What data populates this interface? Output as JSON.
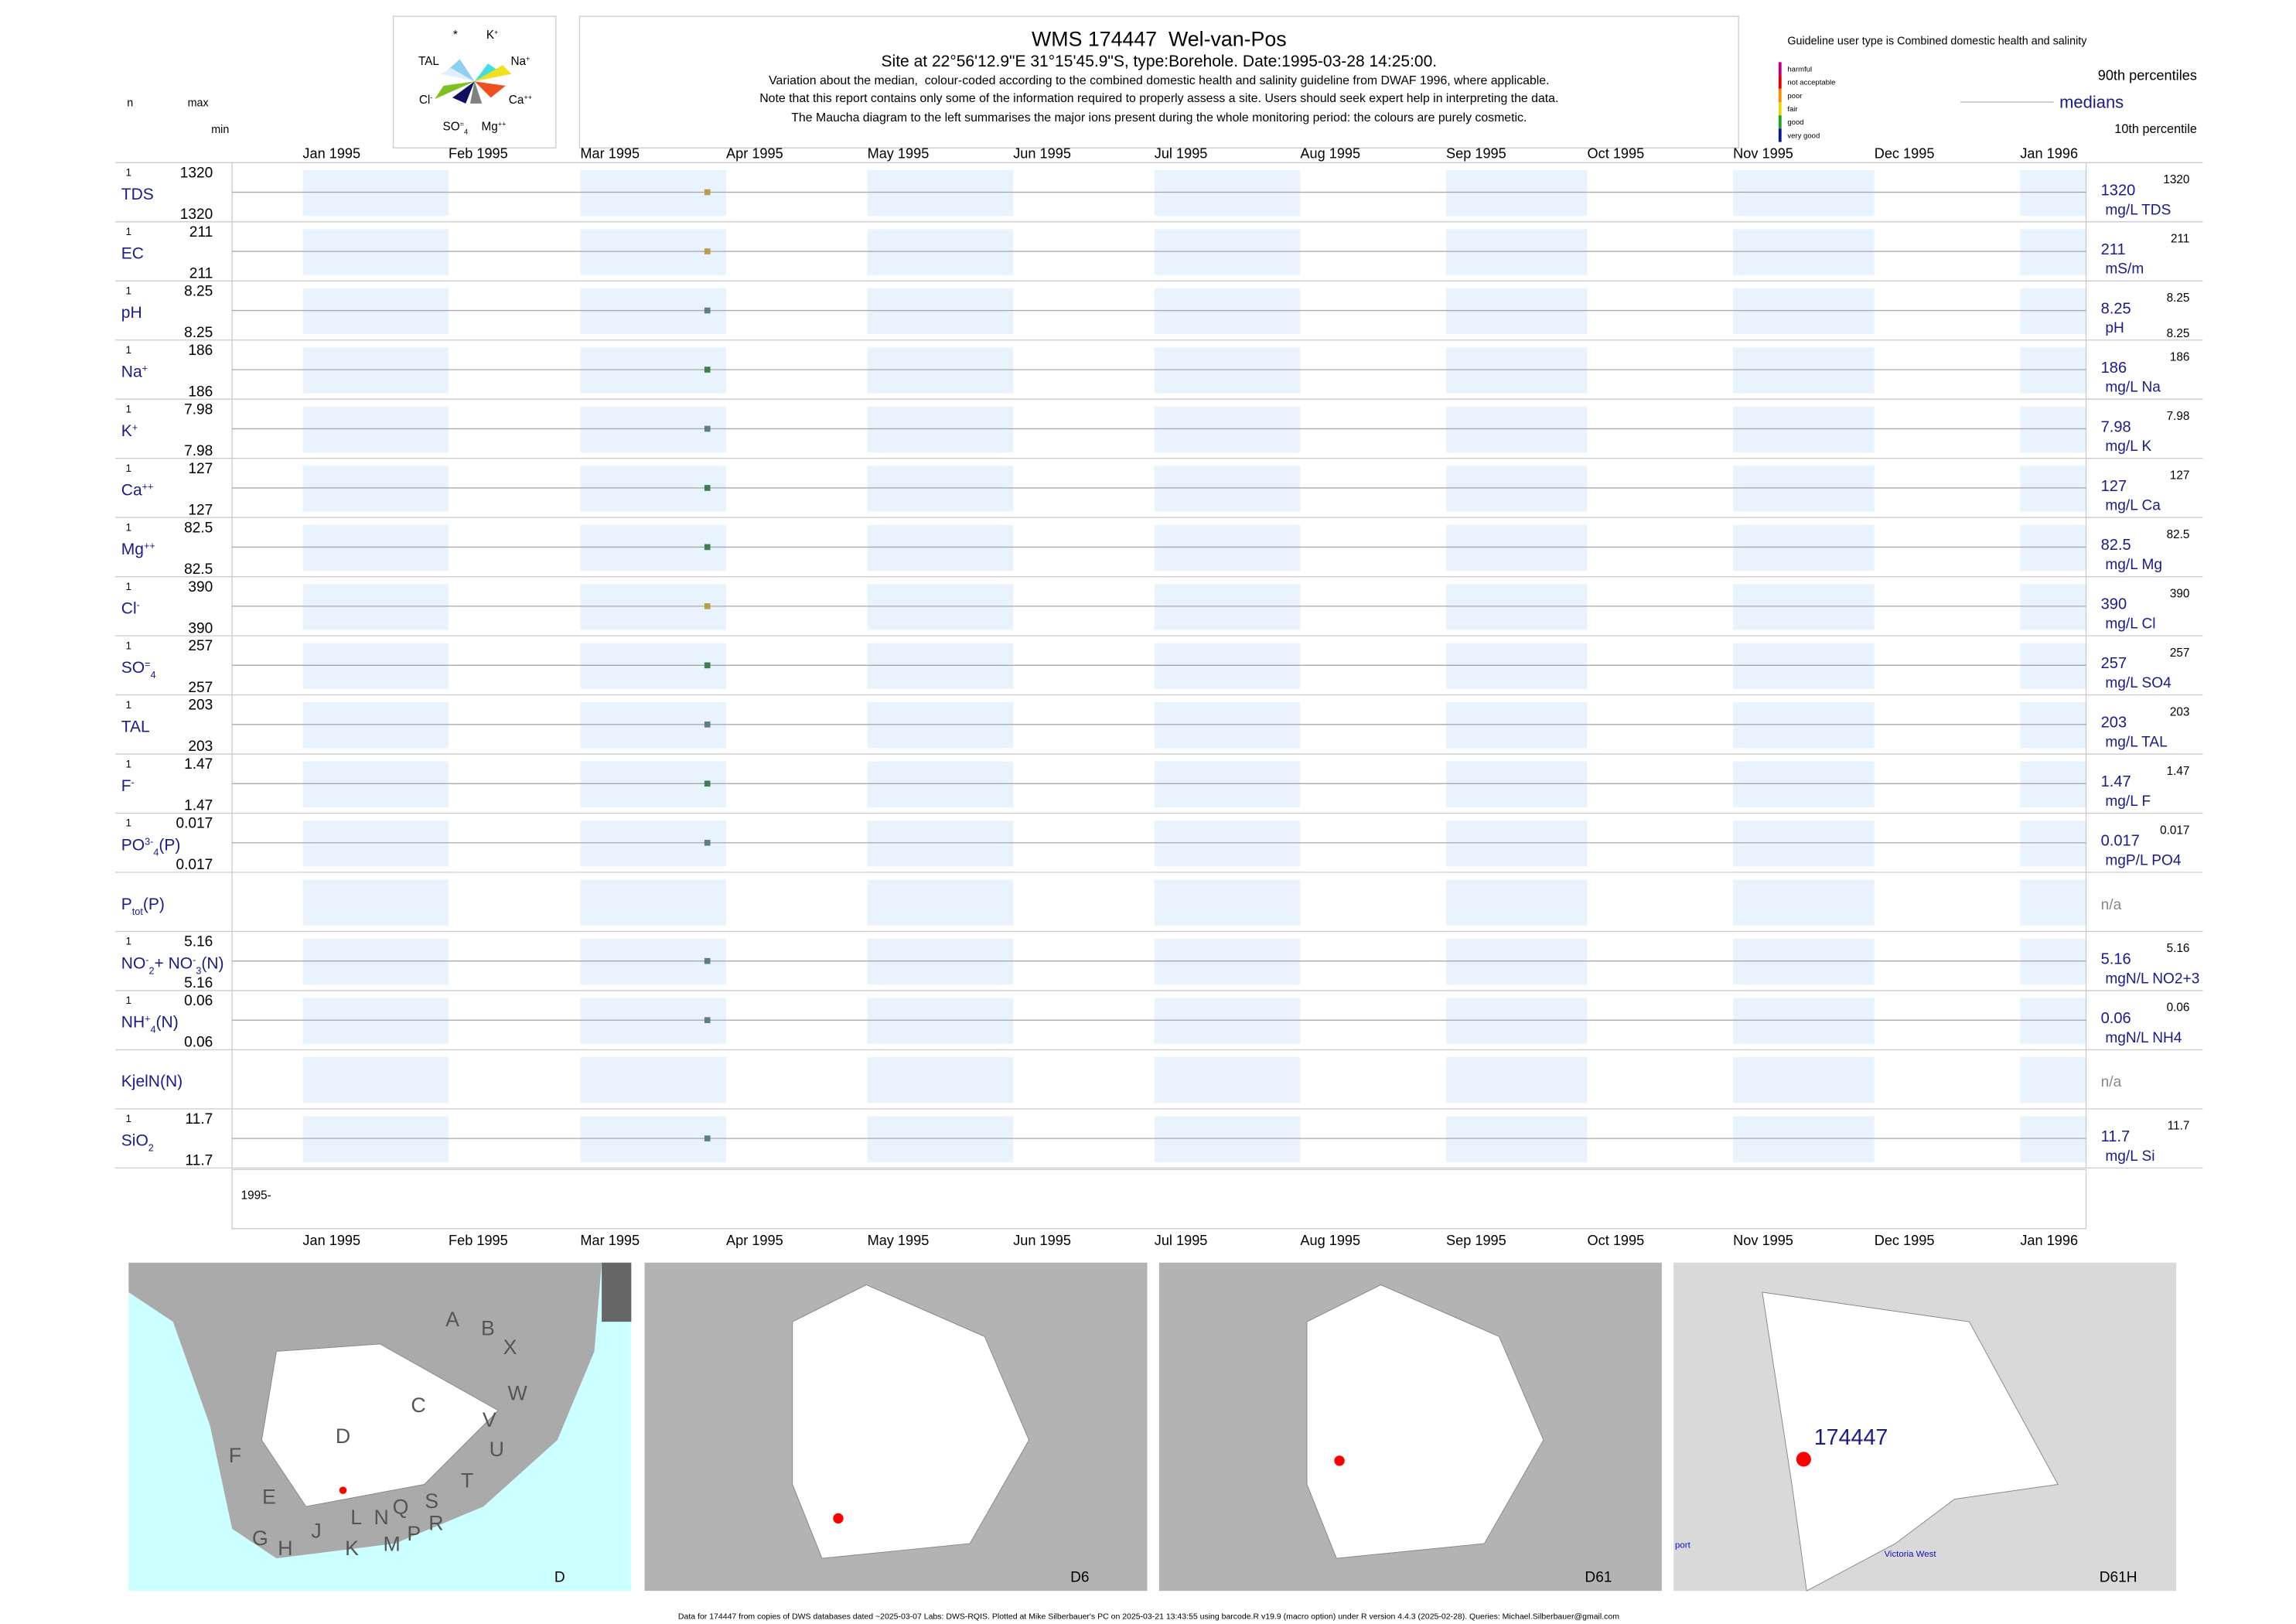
{
  "chart_data": {
    "type": "timeline-report",
    "maucha": {
      "labels": [
        [
          [
            "*",
            "base"
          ]
        ],
        [
          [
            "K",
            "base"
          ],
          [
            "+",
            "sup"
          ]
        ],
        [
          [
            "Na",
            "base"
          ],
          [
            "+",
            "sup"
          ]
        ],
        [
          [
            "Ca",
            "base"
          ],
          [
            "++",
            "sup"
          ]
        ],
        [
          [
            "Mg",
            "base"
          ],
          [
            "++",
            "sup"
          ]
        ],
        [
          [
            "SO",
            "base"
          ],
          [
            "=",
            "sup"
          ],
          [
            "4",
            "sub"
          ]
        ],
        [
          [
            "Cl",
            "base"
          ],
          [
            "-",
            "sup"
          ]
        ],
        [
          [
            "TAL",
            "base"
          ]
        ]
      ]
    },
    "title": "WMS 174447  Wel-van-Pos",
    "subtitle": "Site at 22°56'12.9\"E 31°15'45.9\"S, type:Borehole. Date:1995-03-28 14:25:00.",
    "notes": [
      "Variation about the median,  colour-coded according to the combined domestic health and salinity guideline from DWAF 1996, where applicable.",
      "Note that this report contains only some of the information required to properly assess a site. Users should seek expert help in interpreting the data.",
      "The Maucha diagram to the left summarises the major ions present during the whole monitoring period: the colours are purely cosmetic."
    ],
    "guideline": "Guideline user type is Combined domestic health and salinity",
    "legend": {
      "classes": [
        {
          "name": "harmful",
          "color": "#c0007f"
        },
        {
          "name": "not acceptable",
          "color": "#e00000"
        },
        {
          "name": "poor",
          "color": "#ff8c00"
        },
        {
          "name": "fair",
          "color": "#e8d800"
        },
        {
          "name": "good",
          "color": "#20a020"
        },
        {
          "name": "very good",
          "color": "#1010a0"
        }
      ],
      "upper": "90th percentiles",
      "median": "medians",
      "lower": "10th percentile"
    },
    "column_heads": {
      "n": "n",
      "max": "max",
      "min": "min"
    },
    "xlim": [
      "1994-12-17",
      "1996-01-15"
    ],
    "xticks": [
      {
        "value": "1995-01-01",
        "label": "Jan 1995"
      },
      {
        "value": "1995-02-01",
        "label": "Feb 1995"
      },
      {
        "value": "1995-03-01",
        "label": "Mar 1995"
      },
      {
        "value": "1995-04-01",
        "label": "Apr 1995"
      },
      {
        "value": "1995-05-01",
        "label": "May 1995"
      },
      {
        "value": "1995-06-01",
        "label": "Jun 1995"
      },
      {
        "value": "1995-07-01",
        "label": "Jul 1995"
      },
      {
        "value": "1995-08-01",
        "label": "Aug 1995"
      },
      {
        "value": "1995-09-01",
        "label": "Sep 1995"
      },
      {
        "value": "1995-10-01",
        "label": "Oct 1995"
      },
      {
        "value": "1995-11-01",
        "label": "Nov 1995"
      },
      {
        "value": "1995-12-01",
        "label": "Dec 1995"
      },
      {
        "value": "1996-01-01",
        "label": "Jan 1996"
      }
    ],
    "sample_dates": [
      "1995-03-28"
    ],
    "year_label": "1995-",
    "rows": [
      {
        "label": [
          [
            "TDS",
            "base"
          ]
        ],
        "n": 1,
        "max": 1320,
        "min": 1320,
        "value": 1320,
        "unit": "mg/L TDS",
        "right": [
          1320
        ],
        "color": "#b8a04a"
      },
      {
        "label": [
          [
            "EC",
            "base"
          ]
        ],
        "n": 1,
        "max": 211,
        "min": 211,
        "value": 211,
        "unit": "mS/m",
        "right": [
          211
        ],
        "color": "#b8a04a"
      },
      {
        "label": [
          [
            "pH",
            "base"
          ]
        ],
        "n": 1,
        "max": 8.25,
        "min": 8.25,
        "value": 8.25,
        "unit": "pH",
        "right": [
          8.25,
          8.25
        ],
        "color": "#5f7f7f"
      },
      {
        "label": [
          [
            "Na",
            "base"
          ],
          [
            "+",
            "sup"
          ]
        ],
        "n": 1,
        "max": 186,
        "min": 186,
        "value": 186,
        "unit": "mg/L Na",
        "right": [
          186
        ],
        "color": "#3f7f4f"
      },
      {
        "label": [
          [
            "K",
            "base"
          ],
          [
            "+",
            "sup"
          ]
        ],
        "n": 1,
        "max": 7.98,
        "min": 7.98,
        "value": 7.98,
        "unit": "mg/L K",
        "right": [
          7.98
        ],
        "color": "#5f7f7f"
      },
      {
        "label": [
          [
            "Ca",
            "base"
          ],
          [
            "++",
            "sup"
          ]
        ],
        "n": 1,
        "max": 127,
        "min": 127,
        "value": 127,
        "unit": "mg/L Ca",
        "right": [
          127
        ],
        "color": "#3f7f4f"
      },
      {
        "label": [
          [
            "Mg",
            "base"
          ],
          [
            "++",
            "sup"
          ]
        ],
        "n": 1,
        "max": 82.5,
        "min": 82.5,
        "value": 82.5,
        "unit": "mg/L Mg",
        "right": [
          82.5
        ],
        "color": "#3f7f4f"
      },
      {
        "label": [
          [
            "Cl",
            "base"
          ],
          [
            "-",
            "sup"
          ]
        ],
        "n": 1,
        "max": 390,
        "min": 390,
        "value": 390,
        "unit": "mg/L Cl",
        "right": [
          390
        ],
        "color": "#b8a04a"
      },
      {
        "label": [
          [
            "SO",
            "base"
          ],
          [
            "=",
            "sup"
          ],
          [
            "4",
            "sub"
          ]
        ],
        "n": 1,
        "max": 257,
        "min": 257,
        "value": 257,
        "unit": "mg/L SO4",
        "right": [
          257
        ],
        "color": "#3f7f4f"
      },
      {
        "label": [
          [
            "TAL",
            "base"
          ]
        ],
        "n": 1,
        "max": 203,
        "min": 203,
        "value": 203,
        "unit": "mg/L TAL",
        "right": [
          203
        ],
        "color": "#5f7f7f"
      },
      {
        "label": [
          [
            "F",
            "base"
          ],
          [
            "-",
            "sup"
          ]
        ],
        "n": 1,
        "max": 1.47,
        "min": 1.47,
        "value": 1.47,
        "unit": "mg/L F",
        "right": [
          1.47
        ],
        "color": "#3f7f4f"
      },
      {
        "label": [
          [
            "PO",
            "base"
          ],
          [
            "3-",
            "sup"
          ],
          [
            "4",
            "sub"
          ],
          [
            "(P)",
            "base"
          ]
        ],
        "n": 1,
        "max": 0.017,
        "min": 0.017,
        "value": 0.017,
        "unit": "mgP/L PO4",
        "right": [
          0.017
        ],
        "color": "#5f7f7f"
      },
      {
        "label": [
          [
            "P",
            "base"
          ],
          [
            "tot",
            "sub"
          ],
          [
            "(P)",
            "base"
          ]
        ],
        "value_text": "n/a"
      },
      {
        "label": [
          [
            "NO",
            "base"
          ],
          [
            "-",
            "sup"
          ],
          [
            "2",
            "sub"
          ],
          [
            "+ NO",
            "base"
          ],
          [
            "-",
            "sup"
          ],
          [
            "3",
            "sub"
          ],
          [
            "(N)",
            "base"
          ]
        ],
        "n": 1,
        "max": 5.16,
        "min": 5.16,
        "value": 5.16,
        "unit": "mgN/L NO2+3",
        "right": [
          5.16
        ],
        "color": "#5f7f7f"
      },
      {
        "label": [
          [
            "NH",
            "base"
          ],
          [
            "+",
            "sup"
          ],
          [
            "4",
            "sub"
          ],
          [
            "(N)",
            "base"
          ]
        ],
        "n": 1,
        "max": 0.06,
        "min": 0.06,
        "value": 0.06,
        "unit": "mgN/L NH4",
        "right": [
          0.06
        ],
        "color": "#5f7f7f"
      },
      {
        "label": [
          [
            "KjelN(N)",
            "base"
          ]
        ],
        "value_text": "n/a"
      },
      {
        "label": [
          [
            "SiO",
            "base"
          ],
          [
            "2",
            "sub"
          ]
        ],
        "n": 1,
        "max": 11.7,
        "min": 11.7,
        "value": 11.7,
        "unit": "mg/L Si",
        "right": [
          11.7
        ],
        "color": "#5f7f7f"
      }
    ],
    "maps": [
      {
        "name": "D",
        "letters": [
          "A",
          "B",
          "X",
          "W",
          "C",
          "V",
          "U",
          "D",
          "F",
          "T",
          "E",
          "S",
          "Q",
          "R",
          "N",
          "L",
          "J",
          "P",
          "M",
          "K",
          "G",
          "H"
        ]
      },
      {
        "name": "D6"
      },
      {
        "name": "D61"
      },
      {
        "name": "D61H",
        "site": "174447",
        "places": [
          "Victoria West",
          "port"
        ]
      }
    ],
    "footer": "Data for 174447 from copies of DWS databases dated ~2025-03-07 Labs: DWS-RQIS. Plotted at Mike Silberbauer's PC on 2025-03-21 13:43:55 using barcode.R v19.9 (macro option) under R version 4.4.3 (2025-02-28). Queries: Michael.Silberbauer@gmail.com"
  }
}
